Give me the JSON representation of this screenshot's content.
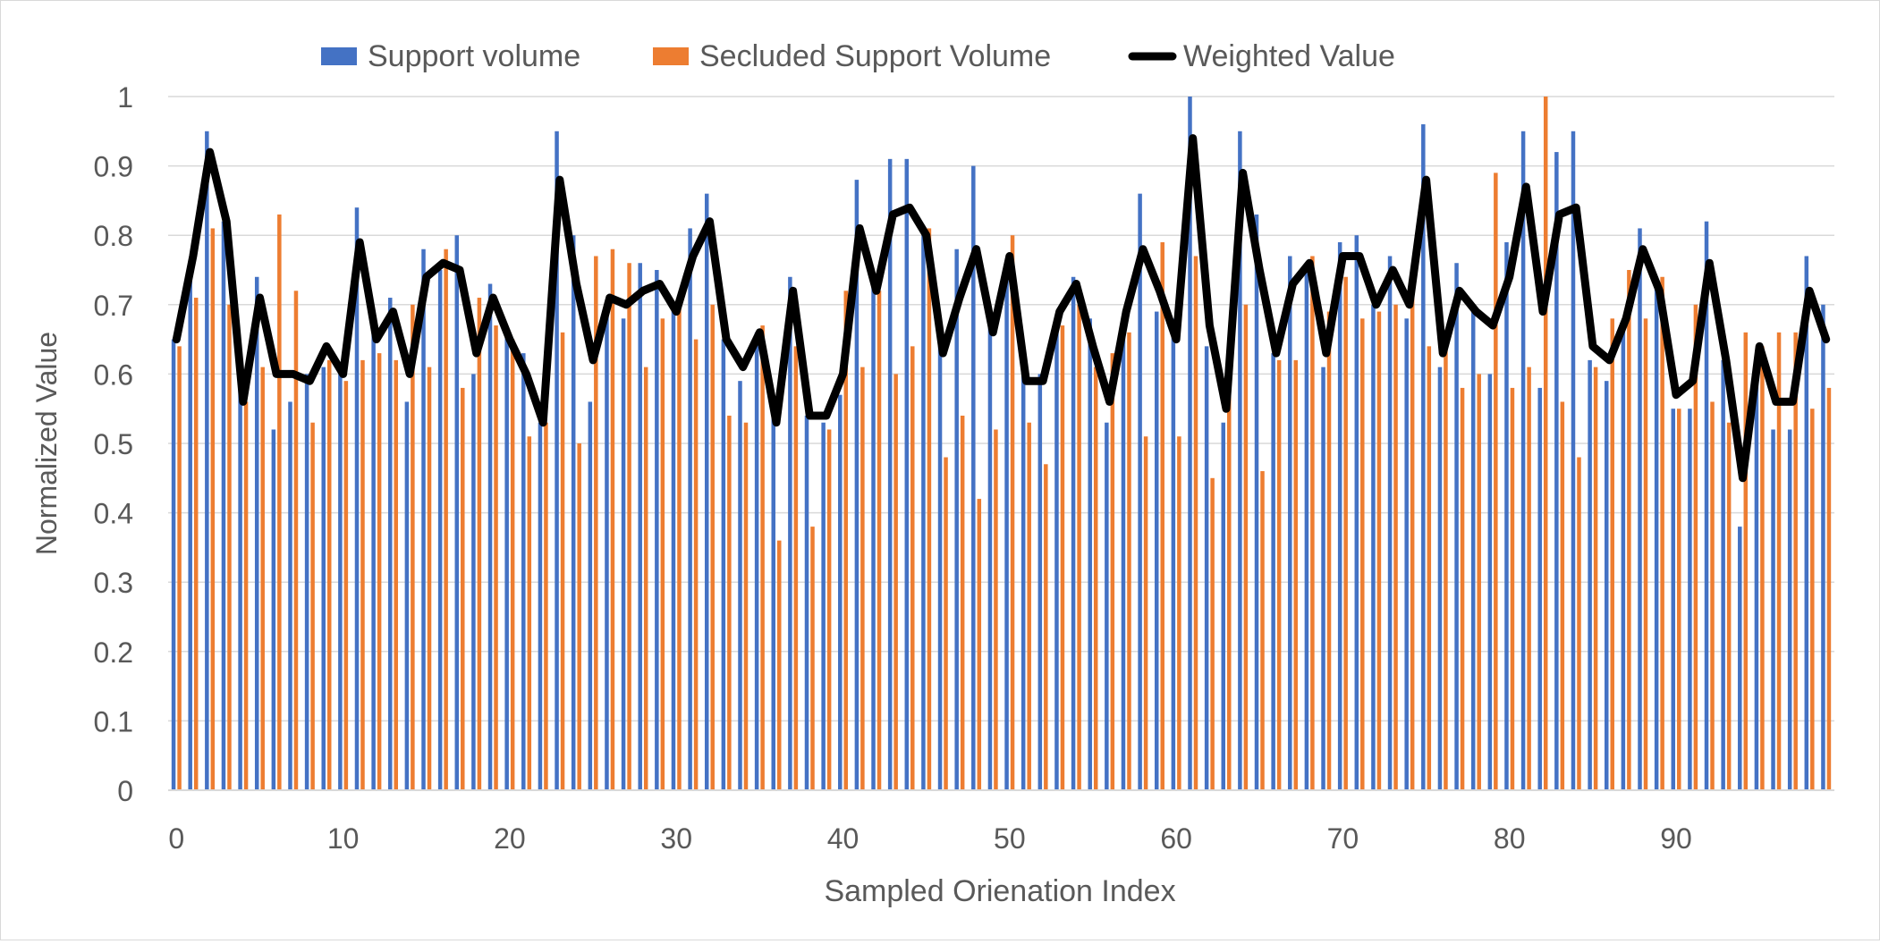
{
  "chart_data": {
    "type": "bar+line",
    "title": "",
    "xlabel": "Sampled Orienation Index",
    "ylabel": "Normalized Value",
    "ylim": [
      0,
      1
    ],
    "yticks": [
      "0",
      "0.1",
      "0.2",
      "0.3",
      "0.4",
      "0.5",
      "0.6",
      "0.7",
      "0.8",
      "0.9",
      "1"
    ],
    "xticks": [
      "0",
      "10",
      "20",
      "30",
      "40",
      "50",
      "60",
      "70",
      "80",
      "90"
    ],
    "legend": [
      "Support volume",
      "Secluded Support Volume",
      "Weighted Value"
    ],
    "legend_position": "top",
    "colors": {
      "support": "#4472C4",
      "secluded": "#ED7D31",
      "weighted": "#000000",
      "grid": "#d9d9d9"
    },
    "x": [
      0,
      1,
      2,
      3,
      4,
      5,
      6,
      7,
      8,
      9,
      10,
      11,
      12,
      13,
      14,
      15,
      16,
      17,
      18,
      19,
      20,
      21,
      22,
      23,
      24,
      25,
      26,
      27,
      28,
      29,
      30,
      31,
      32,
      33,
      34,
      35,
      36,
      37,
      38,
      39,
      40,
      41,
      42,
      43,
      44,
      45,
      46,
      47,
      48,
      49,
      50,
      51,
      52,
      53,
      54,
      55,
      56,
      57,
      58,
      59,
      60,
      61,
      62,
      63,
      64,
      65,
      66,
      67,
      68,
      69,
      70,
      71,
      72,
      73,
      74,
      75,
      76,
      77,
      78,
      79,
      80,
      81,
      82,
      83,
      84,
      85,
      86,
      87,
      88,
      89,
      90,
      91,
      92,
      93,
      94,
      95,
      96,
      97,
      98,
      99
    ],
    "series": [
      {
        "name": "Support volume",
        "kind": "bar",
        "values": [
          0.65,
          0.75,
          0.95,
          0.82,
          0.58,
          0.74,
          0.52,
          0.56,
          0.6,
          0.61,
          0.6,
          0.84,
          0.66,
          0.71,
          0.56,
          0.78,
          0.75,
          0.8,
          0.6,
          0.73,
          0.66,
          0.63,
          0.53,
          0.95,
          0.8,
          0.56,
          0.7,
          0.68,
          0.76,
          0.75,
          0.7,
          0.81,
          0.86,
          0.65,
          0.59,
          0.66,
          0.54,
          0.74,
          0.54,
          0.53,
          0.57,
          0.88,
          0.73,
          0.91,
          0.91,
          0.8,
          0.67,
          0.78,
          0.9,
          0.68,
          0.76,
          0.62,
          0.6,
          0.67,
          0.74,
          0.68,
          0.53,
          0.68,
          0.86,
          0.69,
          0.68,
          1.0,
          0.64,
          0.53,
          0.95,
          0.83,
          0.63,
          0.77,
          0.76,
          0.61,
          0.79,
          0.8,
          0.7,
          0.77,
          0.68,
          0.96,
          0.61,
          0.76,
          0.7,
          0.6,
          0.79,
          0.95,
          0.58,
          0.92,
          0.95,
          0.62,
          0.59,
          0.67,
          0.81,
          0.73,
          0.55,
          0.55,
          0.82,
          0.62,
          0.38,
          0.6,
          0.52,
          0.52,
          0.77,
          0.7
        ]
      },
      {
        "name": "Secluded Support Volume",
        "kind": "bar",
        "values": [
          0.64,
          0.71,
          0.81,
          0.7,
          0.56,
          0.61,
          0.83,
          0.72,
          0.53,
          0.62,
          0.59,
          0.62,
          0.63,
          0.62,
          0.7,
          0.61,
          0.78,
          0.58,
          0.71,
          0.67,
          0.65,
          0.51,
          0.53,
          0.66,
          0.5,
          0.77,
          0.78,
          0.76,
          0.61,
          0.68,
          0.7,
          0.65,
          0.7,
          0.54,
          0.53,
          0.67,
          0.36,
          0.64,
          0.38,
          0.52,
          0.72,
          0.61,
          0.72,
          0.6,
          0.64,
          0.81,
          0.48,
          0.54,
          0.42,
          0.52,
          0.8,
          0.53,
          0.47,
          0.67,
          0.7,
          0.61,
          0.63,
          0.66,
          0.51,
          0.79,
          0.51,
          0.77,
          0.45,
          0.57,
          0.7,
          0.46,
          0.62,
          0.62,
          0.77,
          0.69,
          0.74,
          0.68,
          0.69,
          0.7,
          0.73,
          0.64,
          0.65,
          0.58,
          0.6,
          0.89,
          0.58,
          0.61,
          1.0,
          0.56,
          0.48,
          0.61,
          0.68,
          0.75,
          0.68,
          0.74,
          0.55,
          0.7,
          0.56,
          0.53,
          0.66,
          0.64,
          0.66,
          0.66,
          0.55,
          0.58
        ]
      },
      {
        "name": "Weighted Value",
        "kind": "line",
        "values": [
          0.65,
          0.77,
          0.92,
          0.82,
          0.56,
          0.71,
          0.6,
          0.6,
          0.59,
          0.64,
          0.6,
          0.79,
          0.65,
          0.69,
          0.6,
          0.74,
          0.76,
          0.75,
          0.63,
          0.71,
          0.65,
          0.6,
          0.53,
          0.88,
          0.73,
          0.62,
          0.71,
          0.7,
          0.72,
          0.73,
          0.69,
          0.77,
          0.82,
          0.65,
          0.61,
          0.66,
          0.53,
          0.72,
          0.54,
          0.54,
          0.6,
          0.81,
          0.72,
          0.83,
          0.84,
          0.8,
          0.63,
          0.71,
          0.78,
          0.66,
          0.77,
          0.59,
          0.59,
          0.69,
          0.73,
          0.64,
          0.56,
          0.69,
          0.78,
          0.72,
          0.65,
          0.94,
          0.67,
          0.55,
          0.89,
          0.75,
          0.63,
          0.73,
          0.76,
          0.63,
          0.77,
          0.77,
          0.7,
          0.75,
          0.7,
          0.88,
          0.63,
          0.72,
          0.69,
          0.67,
          0.74,
          0.87,
          0.69,
          0.83,
          0.84,
          0.64,
          0.62,
          0.68,
          0.78,
          0.72,
          0.57,
          0.59,
          0.76,
          0.62,
          0.45,
          0.64,
          0.56,
          0.56,
          0.72,
          0.65
        ]
      }
    ]
  }
}
